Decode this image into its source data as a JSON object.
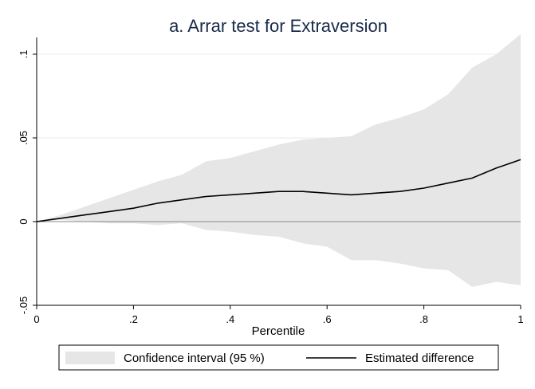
{
  "chart_data": {
    "type": "area",
    "title": "a. Arrar test for Extraversion",
    "xlabel": "Percentile",
    "ylabel": "",
    "xlim": [
      0,
      1
    ],
    "ylim": [
      -0.05,
      0.11
    ],
    "x_ticks": [
      {
        "value": 0,
        "label": "0"
      },
      {
        "value": 0.2,
        "label": ".2"
      },
      {
        "value": 0.4,
        "label": ".4"
      },
      {
        "value": 0.6,
        "label": ".6"
      },
      {
        "value": 0.8,
        "label": ".8"
      },
      {
        "value": 1,
        "label": "1"
      }
    ],
    "y_ticks": [
      {
        "value": -0.05,
        "label": "-.05"
      },
      {
        "value": 0,
        "label": "0"
      },
      {
        "value": 0.05,
        "label": ".05"
      },
      {
        "value": 0.1,
        "label": ".1"
      }
    ],
    "grid": true,
    "legend_position": "bottom",
    "series": [
      {
        "name": "Confidence interval (95 %)",
        "kind": "band",
        "color": "#e6e6e6",
        "x": [
          0,
          0.05,
          0.1,
          0.15,
          0.2,
          0.25,
          0.3,
          0.35,
          0.4,
          0.45,
          0.5,
          0.55,
          0.6,
          0.65,
          0.7,
          0.75,
          0.8,
          0.85,
          0.9,
          0.95,
          1
        ],
        "upper": [
          0,
          0.004,
          0.009,
          0.014,
          0.019,
          0.024,
          0.028,
          0.036,
          0.038,
          0.042,
          0.046,
          0.049,
          0.05,
          0.051,
          0.058,
          0.062,
          0.067,
          0.076,
          0.092,
          0.1,
          0.112
        ],
        "lower": [
          0,
          0.001,
          0.0,
          -0.001,
          -0.001,
          -0.002,
          -0.001,
          -0.005,
          -0.006,
          -0.008,
          -0.009,
          -0.013,
          -0.015,
          -0.023,
          -0.023,
          -0.025,
          -0.028,
          -0.029,
          -0.039,
          -0.036,
          -0.038
        ]
      },
      {
        "name": "Estimated difference",
        "kind": "line",
        "color": "#000000",
        "x": [
          0,
          0.05,
          0.1,
          0.15,
          0.2,
          0.25,
          0.3,
          0.35,
          0.4,
          0.45,
          0.5,
          0.55,
          0.6,
          0.65,
          0.7,
          0.75,
          0.8,
          0.85,
          0.9,
          0.95,
          1
        ],
        "values": [
          0,
          0.002,
          0.004,
          0.006,
          0.008,
          0.011,
          0.013,
          0.015,
          0.016,
          0.017,
          0.018,
          0.018,
          0.017,
          0.016,
          0.017,
          0.018,
          0.02,
          0.023,
          0.026,
          0.032,
          0.037
        ]
      }
    ]
  }
}
